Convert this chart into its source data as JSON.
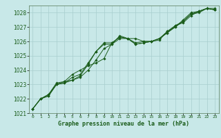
{
  "title": "Graphe pression niveau de la mer (hPa)",
  "bg_color": "#c8e8e8",
  "grid_color": "#a8cece",
  "line_color": "#1a5c1a",
  "xlim": [
    -0.5,
    23.5
  ],
  "ylim": [
    1021,
    1028.5
  ],
  "yticks": [
    1021,
    1022,
    1023,
    1024,
    1025,
    1026,
    1027,
    1028
  ],
  "xticks": [
    0,
    1,
    2,
    3,
    4,
    5,
    6,
    7,
    8,
    9,
    10,
    11,
    12,
    13,
    14,
    15,
    16,
    17,
    18,
    19,
    20,
    21,
    22,
    23
  ],
  "series": [
    [
      1021.3,
      1022.0,
      1022.2,
      1023.0,
      1023.1,
      1023.5,
      1023.7,
      1024.5,
      1025.3,
      1025.9,
      1025.9,
      1026.3,
      1026.2,
      1026.2,
      1026.0,
      1026.0,
      1026.1,
      1026.7,
      1027.1,
      1027.3,
      1027.8,
      1028.1,
      1028.3,
      1028.3
    ],
    [
      1021.3,
      1022.0,
      1022.3,
      1023.0,
      1023.2,
      1023.7,
      1024.0,
      1024.3,
      1024.5,
      1024.8,
      1025.9,
      1026.3,
      1026.2,
      1025.9,
      1026.0,
      1026.0,
      1026.2,
      1026.7,
      1027.0,
      1027.5,
      1028.0,
      1028.1,
      1028.3,
      1028.2
    ],
    [
      1021.3,
      1022.0,
      1022.3,
      1023.1,
      1023.2,
      1023.3,
      1023.6,
      1024.4,
      1025.3,
      1025.8,
      1025.8,
      1026.4,
      1026.2,
      1025.8,
      1025.9,
      1026.0,
      1026.2,
      1026.6,
      1027.1,
      1027.4,
      1027.9,
      1028.1,
      1028.3,
      1028.2
    ],
    [
      1021.3,
      1022.0,
      1022.2,
      1023.0,
      1023.1,
      1023.3,
      1023.5,
      1024.0,
      1024.7,
      1025.5,
      1025.8,
      1026.2,
      1026.2,
      1025.8,
      1025.9,
      1026.0,
      1026.2,
      1026.6,
      1027.0,
      1027.4,
      1027.9,
      1028.0,
      1028.3,
      1028.2
    ]
  ]
}
